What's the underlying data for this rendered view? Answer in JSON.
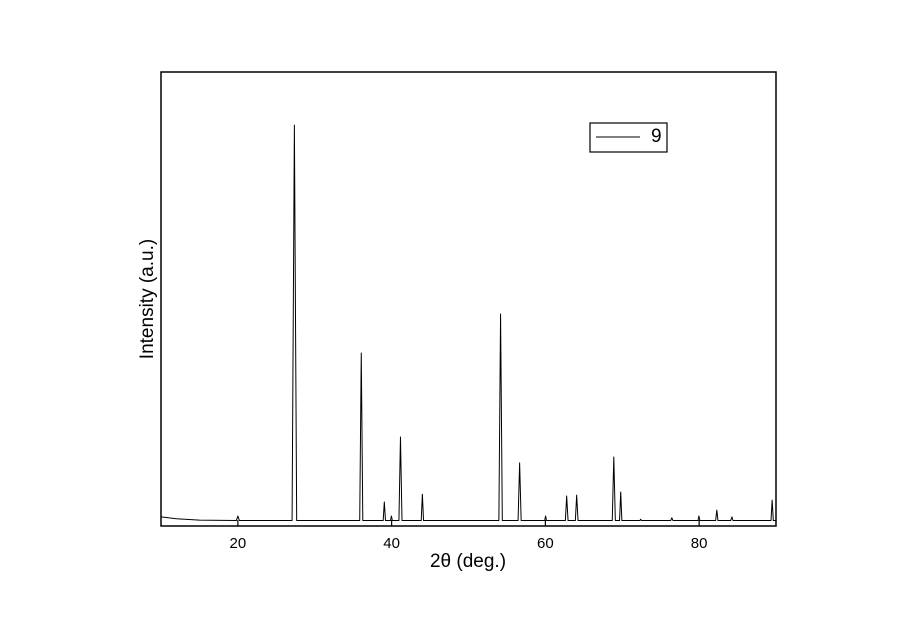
{
  "chart_data": {
    "type": "line",
    "xlabel": "2θ (deg.)",
    "ylabel": "Intensity (a.u.)",
    "xlim": [
      10,
      90
    ],
    "xticks": [
      20,
      40,
      60,
      80
    ],
    "ylim": [
      0,
      100
    ],
    "legend": "upper right",
    "x": [
      10,
      12,
      15,
      19.8,
      20.0,
      20.2,
      27.05,
      27.35,
      27.65,
      35.85,
      36.05,
      36.25,
      38.9,
      39.05,
      39.2,
      39.85,
      39.97,
      40.1,
      40.95,
      41.15,
      41.35,
      43.85,
      44.0,
      44.15,
      53.95,
      54.17,
      54.4,
      56.45,
      56.65,
      56.85,
      59.9,
      60.03,
      60.15,
      62.6,
      62.77,
      62.95,
      63.9,
      64.07,
      64.25,
      68.7,
      68.9,
      69.1,
      69.65,
      69.8,
      69.95,
      72.3,
      72.4,
      72.5,
      76.3,
      76.45,
      76.6,
      79.85,
      79.97,
      80.1,
      82.15,
      82.3,
      82.45,
      84.1,
      84.27,
      84.4,
      89.35,
      89.5,
      89.65,
      90
    ],
    "series": [
      {
        "name": "9",
        "color": "#000000",
        "values": [
          2.0,
          1.6,
          1.3,
          1.2,
          2.2,
          1.2,
          1.2,
          88.3,
          1.2,
          1.2,
          38.1,
          1.2,
          1.2,
          5.3,
          1.2,
          1.2,
          2.2,
          1.2,
          1.2,
          19.6,
          1.2,
          1.2,
          7.0,
          1.2,
          1.2,
          46.7,
          1.2,
          1.2,
          13.9,
          1.2,
          1.2,
          2.2,
          1.2,
          1.2,
          6.6,
          1.2,
          1.2,
          6.8,
          1.2,
          1.2,
          15.2,
          1.2,
          1.2,
          7.5,
          1.2,
          1.2,
          1.5,
          1.2,
          1.2,
          1.8,
          1.2,
          1.2,
          2.2,
          1.2,
          1.2,
          3.5,
          1.2,
          1.2,
          2.0,
          1.2,
          1.2,
          5.7,
          1.2,
          1.2
        ]
      }
    ]
  }
}
